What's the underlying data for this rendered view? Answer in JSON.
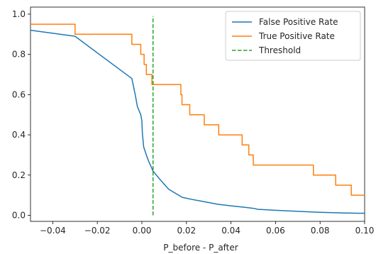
{
  "chart_data": {
    "type": "line",
    "title": "",
    "xlabel": "P_before - P_after",
    "ylabel": "",
    "xlim": [
      -0.05,
      0.1
    ],
    "ylim": [
      -0.03,
      1.035
    ],
    "x_ticks": [
      -0.04,
      -0.02,
      0.0,
      0.02,
      0.04,
      0.06,
      0.08,
      0.1
    ],
    "x_tick_labels": [
      "−0.04",
      "−0.02",
      "0.00",
      "0.02",
      "0.04",
      "0.06",
      "0.08",
      "0.10"
    ],
    "y_ticks": [
      0.0,
      0.2,
      0.4,
      0.6,
      0.8,
      1.0
    ],
    "y_tick_labels": [
      "0.0",
      "0.2",
      "0.4",
      "0.6",
      "0.8",
      "1.0"
    ],
    "grid": false,
    "legend_position": "top-right",
    "series": [
      {
        "name": "False Positive Rate",
        "color": "#1f77b4",
        "style": "solid",
        "x": [
          -0.05,
          -0.03,
          -0.0045,
          -0.003,
          -0.002,
          -0.0005,
          0.0,
          0.0002,
          0.0008,
          0.002,
          0.003,
          0.005,
          0.008,
          0.012,
          0.018,
          0.022,
          0.028,
          0.034,
          0.04,
          0.046,
          0.05,
          0.052,
          0.06,
          0.07,
          0.08,
          0.09,
          0.1
        ],
        "y": [
          0.92,
          0.89,
          0.68,
          0.6,
          0.54,
          0.5,
          0.47,
          0.41,
          0.34,
          0.3,
          0.27,
          0.22,
          0.18,
          0.13,
          0.09,
          0.08,
          0.068,
          0.055,
          0.047,
          0.04,
          0.035,
          0.03,
          0.025,
          0.02,
          0.015,
          0.012,
          0.01
        ]
      },
      {
        "name": "True Positive Rate",
        "color": "#ff7f0e",
        "style": "step",
        "x": [
          -0.05,
          -0.03,
          -0.03,
          -0.0045,
          -0.0045,
          -0.0005,
          -0.0005,
          0.001,
          0.001,
          0.002,
          0.002,
          0.0045,
          0.0045,
          0.0175,
          0.0175,
          0.018,
          0.018,
          0.0215,
          0.0215,
          0.028,
          0.028,
          0.0345,
          0.0345,
          0.045,
          0.045,
          0.048,
          0.048,
          0.05,
          0.05,
          0.052,
          0.052,
          0.077,
          0.077,
          0.087,
          0.087,
          0.094,
          0.094,
          0.098,
          0.098,
          0.1
        ],
        "y": [
          0.95,
          0.95,
          0.9,
          0.9,
          0.85,
          0.85,
          0.8,
          0.8,
          0.75,
          0.75,
          0.7,
          0.7,
          0.65,
          0.65,
          0.6,
          0.6,
          0.55,
          0.55,
          0.5,
          0.5,
          0.45,
          0.45,
          0.4,
          0.4,
          0.35,
          0.35,
          0.3,
          0.3,
          0.25,
          0.25,
          0.25,
          0.25,
          0.2,
          0.2,
          0.15,
          0.15,
          0.1,
          0.1,
          0.1,
          0.1
        ]
      },
      {
        "name": "Threshold",
        "color": "#2ca02c",
        "style": "dashed",
        "x": [
          0.005,
          0.005
        ],
        "y": [
          0.0,
          0.99
        ]
      }
    ]
  }
}
